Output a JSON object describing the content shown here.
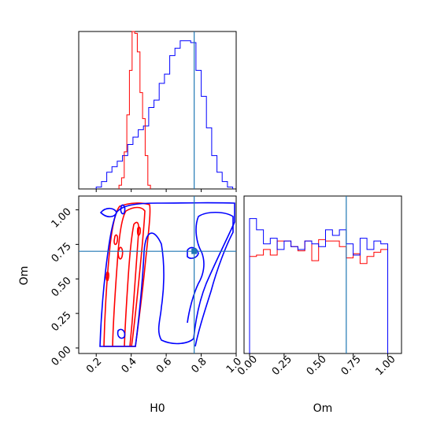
{
  "chart_data": {
    "type": "corner",
    "parameters": [
      "H0",
      "Om"
    ],
    "truth": {
      "H0": 0.76,
      "Om": 0.7
    },
    "colors": {
      "series_a": "#ff0000",
      "series_b": "#0000ff",
      "truth": "#1f77b4"
    },
    "grid": false,
    "panels": [
      {
        "name": "H0-marginal",
        "type": "step-histogram",
        "xlim": [
          0.1,
          1.0
        ],
        "series": [
          {
            "color_key": "series_a",
            "bin_edges": [
              0.33,
              0.345,
              0.36,
              0.375,
              0.39,
              0.405,
              0.42,
              0.435,
              0.45,
              0.465,
              0.48,
              0.495,
              0.51
            ],
            "counts": [
              2,
              6,
              20,
              40,
              64,
              85,
              84,
              74,
              52,
              38,
              18,
              2
            ]
          },
          {
            "color_key": "series_b",
            "bin_edges": [
              0.2,
              0.23,
              0.26,
              0.29,
              0.32,
              0.35,
              0.38,
              0.41,
              0.44,
              0.47,
              0.5,
              0.53,
              0.56,
              0.59,
              0.62,
              0.65,
              0.68,
              0.71,
              0.74,
              0.77,
              0.8,
              0.83,
              0.86,
              0.89,
              0.92,
              0.95,
              0.98
            ],
            "counts": [
              1,
              4,
              9,
              12,
              15,
              18,
              24,
              28,
              32,
              34,
              44,
              48,
              57,
              62,
              72,
              76,
              80,
              80,
              79,
              64,
              50,
              33,
              18,
              9,
              4,
              1
            ]
          }
        ]
      },
      {
        "name": "Om-vs-H0",
        "type": "contour",
        "xlabel": "H0",
        "ylabel": "Om",
        "xlim": [
          0.1,
          1.0
        ],
        "ylim": [
          -0.04,
          1.1
        ],
        "xticks": [
          "0.2",
          "0.4",
          "0.6",
          "0.8",
          "1.0"
        ],
        "xtick_values": [
          0.2,
          0.4,
          0.6,
          0.8,
          1.0
        ],
        "yticks": [
          "0.00",
          "0.25",
          "0.50",
          "0.75",
          "1.00"
        ],
        "ytick_values": [
          0.0,
          0.25,
          0.5,
          0.75,
          1.0
        ],
        "truth_point": [
          0.76,
          0.7
        ]
      },
      {
        "name": "Om-marginal",
        "type": "step-histogram",
        "xlabel": "Om",
        "xlim": [
          -0.04,
          1.1
        ],
        "xticks": [
          "0.00",
          "0.25",
          "0.50",
          "0.75",
          "1.00"
        ],
        "xtick_values": [
          0.0,
          0.25,
          0.5,
          0.75,
          1.0
        ],
        "series": [
          {
            "color_key": "series_a",
            "bin_edges": [
              0.0,
              0.05,
              0.1,
              0.15,
              0.2,
              0.25,
              0.3,
              0.35,
              0.4,
              0.45,
              0.5,
              0.55,
              0.6,
              0.65,
              0.7,
              0.75,
              0.8,
              0.85,
              0.9,
              0.95,
              1.0
            ],
            "counts": [
              69,
              70,
              74,
              70,
              80,
              80,
              76,
              73,
              80,
              66,
              81,
              80,
              80,
              76,
              68,
              71,
              64,
              69,
              72,
              74
            ]
          },
          {
            "color_key": "series_b",
            "bin_edges": [
              0.0,
              0.05,
              0.1,
              0.15,
              0.2,
              0.25,
              0.3,
              0.35,
              0.4,
              0.45,
              0.5,
              0.55,
              0.6,
              0.65,
              0.7,
              0.75,
              0.8,
              0.85,
              0.9,
              0.95,
              1.0
            ],
            "counts": [
              96,
              88,
              78,
              82,
              74,
              80,
              76,
              74,
              80,
              78,
              76,
              88,
              84,
              88,
              78,
              70,
              82,
              74,
              80,
              78
            ]
          }
        ]
      }
    ]
  }
}
